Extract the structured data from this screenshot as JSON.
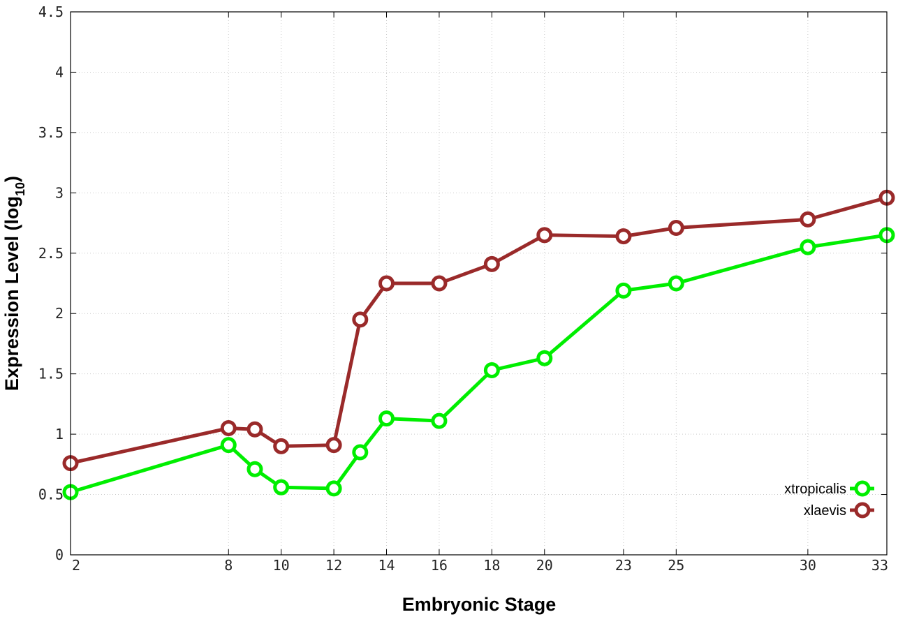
{
  "chart_data": {
    "type": "line",
    "title": "",
    "xlabel": "Embryonic Stage",
    "ylabel_main": "Expression Level (log",
    "ylabel_sub": "10",
    "ylabel_end": ")",
    "x": [
      2,
      8,
      9,
      10,
      12,
      13,
      14,
      16,
      18,
      20,
      23,
      25,
      30,
      33
    ],
    "x_ticks": [
      "2",
      "8",
      "10",
      "12",
      "14",
      "16",
      "18",
      "20",
      "23",
      "25",
      "30",
      "33"
    ],
    "y_ticks": [
      "0",
      "0.5",
      "1",
      "1.5",
      "2",
      "2.5",
      "3",
      "3.5",
      "4",
      "4.5"
    ],
    "xlim": [
      2,
      33
    ],
    "ylim": [
      0,
      4.5
    ],
    "grid": true,
    "legend_position": "bottom-right",
    "series": [
      {
        "name": "xtropicalis",
        "color": "#00ee00",
        "values": [
          0.52,
          0.91,
          0.71,
          0.56,
          0.55,
          0.85,
          1.13,
          1.11,
          1.53,
          1.63,
          2.19,
          2.25,
          2.55,
          2.65
        ]
      },
      {
        "name": "xlaevis",
        "color": "#9a2a2a",
        "values": [
          0.76,
          1.05,
          1.04,
          0.9,
          0.91,
          1.95,
          2.25,
          2.25,
          2.41,
          2.65,
          2.64,
          2.71,
          2.78,
          2.96
        ]
      }
    ]
  }
}
